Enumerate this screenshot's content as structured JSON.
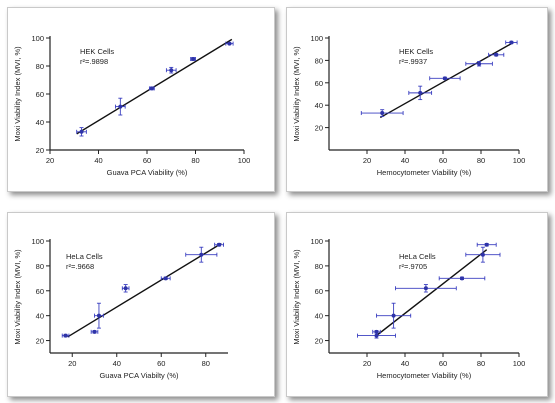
{
  "colors": {
    "marker": "#2e33a8",
    "errorbar": "#3a3fc0",
    "fit": "#111111",
    "axis": "#222222"
  },
  "chart_data": [
    {
      "type": "scatter",
      "title": "",
      "annotation": "HEK Cells",
      "r2_label": "r²=.9898",
      "xlabel": "Guava PCA Viability (%)",
      "ylabel": "Moxi Viability Index (MVI, %)",
      "xlim": [
        20,
        100
      ],
      "ylim": [
        20,
        100
      ],
      "xticks": [
        20,
        40,
        60,
        80,
        100
      ],
      "yticks": [
        20,
        40,
        60,
        80,
        100
      ],
      "points": [
        {
          "x": 33,
          "y": 33,
          "xerr": 2,
          "yerr": 3
        },
        {
          "x": 49,
          "y": 51,
          "xerr": 2,
          "yerr": 6
        },
        {
          "x": 62,
          "y": 64,
          "xerr": 1,
          "yerr": 1
        },
        {
          "x": 70,
          "y": 77,
          "xerr": 2,
          "yerr": 2
        },
        {
          "x": 79,
          "y": 85,
          "xerr": 1,
          "yerr": 1
        },
        {
          "x": 94,
          "y": 96,
          "xerr": 1.5,
          "yerr": 0.5
        }
      ],
      "fit": {
        "x": [
          31,
          95
        ],
        "y": [
          31.5,
          99
        ]
      }
    },
    {
      "type": "scatter",
      "title": "",
      "annotation": "HEK Cells",
      "r2_label": "r²=.9937",
      "xlabel": "Hemocytometer Viability (%)",
      "ylabel": "Moxi Viability Index (MVI, %)",
      "xlim": [
        0,
        100
      ],
      "ylim": [
        0,
        100
      ],
      "xticks": [
        20,
        40,
        60,
        80,
        100
      ],
      "yticks": [
        20,
        40,
        60,
        80,
        100
      ],
      "points": [
        {
          "x": 28,
          "y": 33,
          "xerr": 11,
          "yerr": 3
        },
        {
          "x": 48,
          "y": 51,
          "xerr": 6,
          "yerr": 6
        },
        {
          "x": 61,
          "y": 64,
          "xerr": 8,
          "yerr": 1
        },
        {
          "x": 79,
          "y": 77,
          "xerr": 7,
          "yerr": 2
        },
        {
          "x": 88,
          "y": 85,
          "xerr": 4,
          "yerr": 1
        },
        {
          "x": 96,
          "y": 96,
          "xerr": 3,
          "yerr": 1
        }
      ],
      "fit": {
        "x": [
          27,
          96
        ],
        "y": [
          29,
          95
        ]
      }
    },
    {
      "type": "scatter",
      "title": "",
      "annotation": "HeLa Cells",
      "r2_label": "r²=.9668",
      "xlabel": "Guava PCA Viabilty (%)",
      "ylabel": "Moxi Viability Index (MVI, %)",
      "xlim": [
        10,
        90
      ],
      "ylim": [
        10,
        100
      ],
      "xticks": [
        20,
        40,
        60,
        80
      ],
      "yticks": [
        20,
        40,
        60,
        80,
        100
      ],
      "points": [
        {
          "x": 17,
          "y": 24,
          "xerr": 1.5,
          "yerr": 1
        },
        {
          "x": 30,
          "y": 27,
          "xerr": 1.5,
          "yerr": 1
        },
        {
          "x": 32,
          "y": 40,
          "xerr": 2,
          "yerr": 10
        },
        {
          "x": 44,
          "y": 62,
          "xerr": 1.5,
          "yerr": 3
        },
        {
          "x": 62,
          "y": 70,
          "xerr": 2,
          "yerr": 1
        },
        {
          "x": 78,
          "y": 89,
          "xerr": 7,
          "yerr": 6
        },
        {
          "x": 86,
          "y": 97,
          "xerr": 2,
          "yerr": 1
        }
      ],
      "fit": {
        "x": [
          18,
          87
        ],
        "y": [
          23,
          98
        ]
      }
    },
    {
      "type": "scatter",
      "title": "",
      "annotation": "HeLa Cells",
      "r2_label": "r²=.9705",
      "xlabel": "Hemocytometer Viability (%)",
      "ylabel": "Moxi Viability Index (MVI, %)",
      "xlim": [
        0,
        100
      ],
      "ylim": [
        10,
        100
      ],
      "xticks": [
        20,
        40,
        60,
        80,
        100
      ],
      "yticks": [
        20,
        40,
        60,
        80,
        100
      ],
      "points": [
        {
          "x": 25,
          "y": 24,
          "xerr": 10,
          "yerr": 2
        },
        {
          "x": 25,
          "y": 27,
          "xerr": 2,
          "yerr": 1
        },
        {
          "x": 34,
          "y": 40,
          "xerr": 9,
          "yerr": 10
        },
        {
          "x": 51,
          "y": 62,
          "xerr": 16,
          "yerr": 3
        },
        {
          "x": 70,
          "y": 70,
          "xerr": 12,
          "yerr": 1
        },
        {
          "x": 81,
          "y": 89,
          "xerr": 9,
          "yerr": 6
        },
        {
          "x": 83,
          "y": 97,
          "xerr": 5,
          "yerr": 1
        }
      ],
      "fit": {
        "x": [
          25,
          83
        ],
        "y": [
          24,
          93
        ]
      }
    }
  ]
}
